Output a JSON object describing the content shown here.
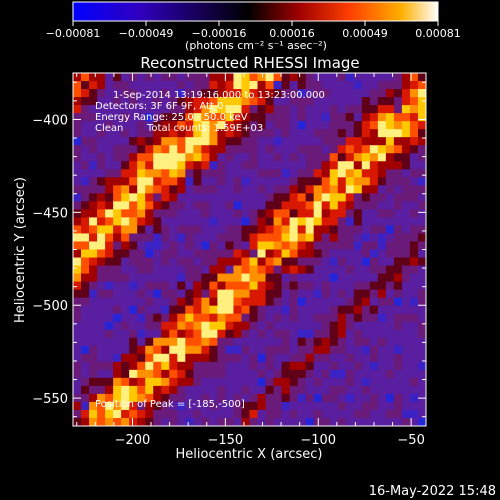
{
  "chart_data": {
    "type": "heatmap",
    "title": "Reconstructed RHESSI Image",
    "xlabel": "Heliocentric X (arcsec)",
    "ylabel": "Heliocentric Y (arcsec)",
    "xlim": [
      -232,
      -42
    ],
    "ylim": [
      -565,
      -375
    ],
    "x_ticks": [
      {
        "v": -200,
        "label": "−200"
      },
      {
        "v": -150,
        "label": "−150"
      },
      {
        "v": -100,
        "label": "−100"
      },
      {
        "v": -50,
        "label": "−50"
      }
    ],
    "y_ticks": [
      {
        "v": -400,
        "label": "−400"
      },
      {
        "v": -450,
        "label": "−450"
      },
      {
        "v": -500,
        "label": "−500"
      },
      {
        "v": -550,
        "label": "−550"
      }
    ],
    "colorbar": {
      "range": [
        -0.00081,
        0.00081
      ],
      "ticks": [
        "−0.00081",
        "−0.00049",
        "−0.00016",
        "0.00016",
        "0.00049",
        "0.00081"
      ],
      "unit": "(photons cm⁻² s⁻¹ asec⁻²)",
      "colors": [
        "#0000ff",
        "#000000",
        "#b00000",
        "#ff6000",
        "#ffc000",
        "#ffffff"
      ]
    },
    "annotations": {
      "time": "1-Sep-2014 13:19:16.000 to 13:23:00.000",
      "detectors": "Detectors: 3F 6F 9F, Att 0",
      "energy": "Energy Range: 25.0 - 50.0 keV",
      "method": "Clean",
      "counts": "Total counts: 1.59E+03",
      "peak": "Position of Peak = [-185,-500]"
    },
    "peak_position": [
      -185,
      -500
    ],
    "grid": false,
    "image_colors": {
      "background": "#5a1fa0",
      "low": "#2020e0",
      "ridge_dark": "#6a0010",
      "ridge_mid": "#d81800",
      "ridge_hot": "#ff9a00",
      "ridge_max": "#fff080"
    }
  },
  "footer": {
    "timestamp": "16-May-2022 15:48"
  }
}
